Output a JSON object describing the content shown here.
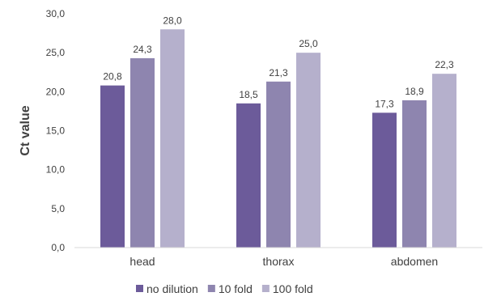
{
  "chart_data": {
    "type": "bar",
    "title": "",
    "xlabel": "",
    "ylabel": "Ct value",
    "categories": [
      "head",
      "thorax",
      "abdomen"
    ],
    "series": [
      {
        "name": "no dilution",
        "values": [
          20.8,
          18.5,
          17.3
        ],
        "labels": [
          "20,8",
          "18,5",
          "17,3"
        ],
        "color": "#6c5b9a"
      },
      {
        "name": "10 fold",
        "values": [
          24.3,
          21.3,
          18.9
        ],
        "labels": [
          "24,3",
          "21,3",
          "18,9"
        ],
        "color": "#8e85af"
      },
      {
        "name": "100 fold",
        "values": [
          28.0,
          25.0,
          22.3
        ],
        "labels": [
          "28,0",
          "25,0",
          "22,3"
        ],
        "color": "#b5b0cc"
      }
    ],
    "ylim": [
      0,
      30
    ],
    "yticks": [
      0,
      5,
      10,
      15,
      20,
      25,
      30
    ],
    "ytick_labels": [
      "0,0",
      "5,0",
      "10,0",
      "15,0",
      "20,0",
      "25,0",
      "30,0"
    ],
    "grid": false,
    "legend_position": "bottom",
    "axis_color": "#d9d9d9"
  }
}
